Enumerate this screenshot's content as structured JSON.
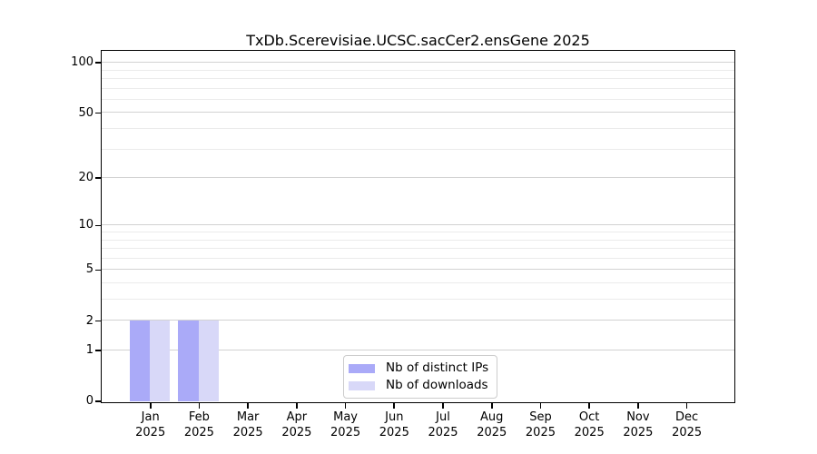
{
  "chart_data": {
    "type": "bar",
    "title": "TxDb.Scerevisiae.UCSC.sacCer2.ensGene 2025",
    "categories": [
      "Jan\n2025",
      "Feb\n2025",
      "Mar\n2025",
      "Apr\n2025",
      "May\n2025",
      "Jun\n2025",
      "Jul\n2025",
      "Aug\n2025",
      "Sep\n2025",
      "Oct\n2025",
      "Nov\n2025",
      "Dec\n2025"
    ],
    "series": [
      {
        "name": "Nb of distinct IPs",
        "color": "#aaaaf8",
        "values": [
          2,
          2,
          0,
          0,
          0,
          0,
          0,
          0,
          0,
          0,
          0,
          0
        ]
      },
      {
        "name": "Nb of downloads",
        "color": "#d8d8f8",
        "values": [
          2,
          2,
          0,
          0,
          0,
          0,
          0,
          0,
          0,
          0,
          0,
          0
        ]
      }
    ],
    "xlabel": "",
    "ylabel": "",
    "yscale": "log1p",
    "ylim": [
      0,
      117
    ],
    "yticks": [
      0,
      1,
      2,
      5,
      10,
      20,
      50,
      100
    ],
    "minor_gridlines": [
      3,
      4,
      6,
      7,
      8,
      9,
      30,
      40,
      60,
      70,
      80,
      90
    ],
    "grid": "horizontal",
    "legend": {
      "position": "lower center",
      "entries": [
        "Nb of distinct IPs",
        "Nb of downloads"
      ]
    },
    "colors": {
      "bar_distinct_ips": "#aaaaf8",
      "bar_downloads": "#d8d8f8",
      "gridline_major": "#d2d2d2",
      "gridline_minor": "#ebebeb",
      "axis": "#000000",
      "legend_border": "#cccccc"
    }
  }
}
